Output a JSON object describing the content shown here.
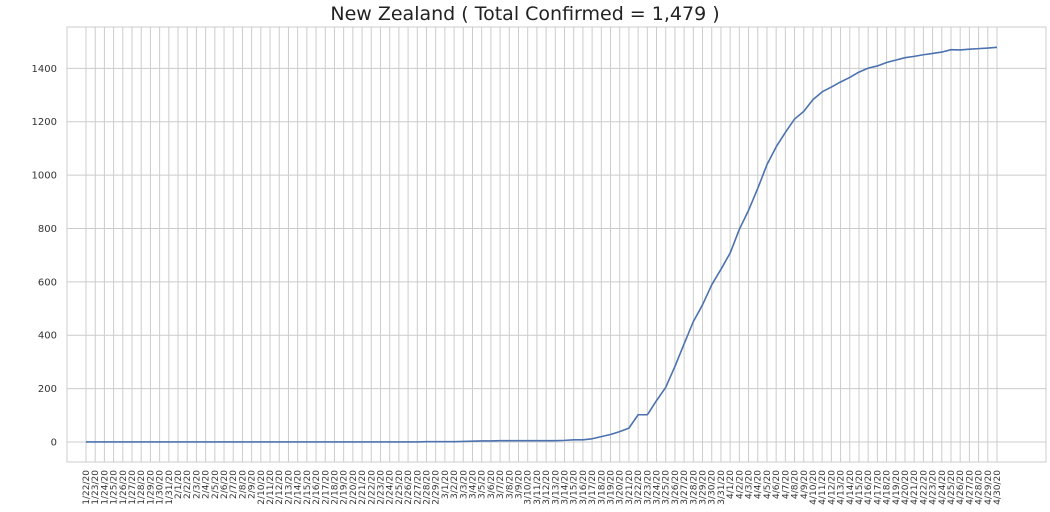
{
  "chart_data": {
    "type": "line",
    "title": "New Zealand ( Total Confirmed = 1,479 )",
    "xlabel": "",
    "ylabel": "",
    "ylim": [
      -75,
      1555
    ],
    "yticks": [
      0,
      200,
      400,
      600,
      800,
      1000,
      1200,
      1400
    ],
    "grid": true,
    "line_color": "#4c72b0",
    "x": [
      "1/22/20",
      "1/23/20",
      "1/24/20",
      "1/25/20",
      "1/26/20",
      "1/27/20",
      "1/28/20",
      "1/29/20",
      "1/30/20",
      "1/31/20",
      "2/1/20",
      "2/2/20",
      "2/3/20",
      "2/4/20",
      "2/5/20",
      "2/6/20",
      "2/7/20",
      "2/8/20",
      "2/9/20",
      "2/10/20",
      "2/11/20",
      "2/12/20",
      "2/13/20",
      "2/14/20",
      "2/15/20",
      "2/16/20",
      "2/17/20",
      "2/18/20",
      "2/19/20",
      "2/20/20",
      "2/21/20",
      "2/22/20",
      "2/23/20",
      "2/24/20",
      "2/25/20",
      "2/26/20",
      "2/27/20",
      "2/28/20",
      "2/29/20",
      "3/1/20",
      "3/2/20",
      "3/3/20",
      "3/4/20",
      "3/5/20",
      "3/6/20",
      "3/7/20",
      "3/8/20",
      "3/9/20",
      "3/10/20",
      "3/11/20",
      "3/12/20",
      "3/13/20",
      "3/14/20",
      "3/15/20",
      "3/16/20",
      "3/17/20",
      "3/18/20",
      "3/19/20",
      "3/20/20",
      "3/21/20",
      "3/22/20",
      "3/23/20",
      "3/24/20",
      "3/25/20",
      "3/26/20",
      "3/27/20",
      "3/28/20",
      "3/29/20",
      "3/30/20",
      "3/31/20",
      "4/1/20",
      "4/2/20",
      "4/3/20",
      "4/4/20",
      "4/5/20",
      "4/6/20",
      "4/7/20",
      "4/8/20",
      "4/9/20",
      "4/10/20",
      "4/11/20",
      "4/12/20",
      "4/13/20",
      "4/14/20",
      "4/15/20",
      "4/16/20",
      "4/17/20",
      "4/18/20",
      "4/19/20",
      "4/20/20",
      "4/21/20",
      "4/22/20",
      "4/23/20",
      "4/24/20",
      "4/25/20",
      "4/26/20",
      "4/27/20",
      "4/28/20",
      "4/29/20",
      "4/30/20"
    ],
    "series": [
      {
        "values": [
          0,
          0,
          0,
          0,
          0,
          0,
          0,
          0,
          0,
          0,
          0,
          0,
          0,
          0,
          0,
          0,
          0,
          0,
          0,
          0,
          0,
          0,
          0,
          0,
          0,
          0,
          0,
          0,
          0,
          0,
          0,
          0,
          0,
          0,
          0,
          0,
          0,
          1,
          1,
          1,
          1,
          2,
          3,
          4,
          4,
          5,
          5,
          5,
          5,
          5,
          5,
          5,
          6,
          8,
          8,
          12,
          20,
          28,
          39,
          52,
          102,
          102,
          155,
          205,
          283,
          368,
          451,
          514,
          589,
          647,
          708,
          797,
          868,
          950,
          1039,
          1106,
          1160,
          1210,
          1239,
          1283,
          1312,
          1330,
          1349,
          1366,
          1386,
          1401,
          1409,
          1422,
          1431,
          1440,
          1445,
          1451,
          1456,
          1461,
          1470,
          1469,
          1472,
          1474,
          1476,
          1479
        ]
      }
    ]
  }
}
